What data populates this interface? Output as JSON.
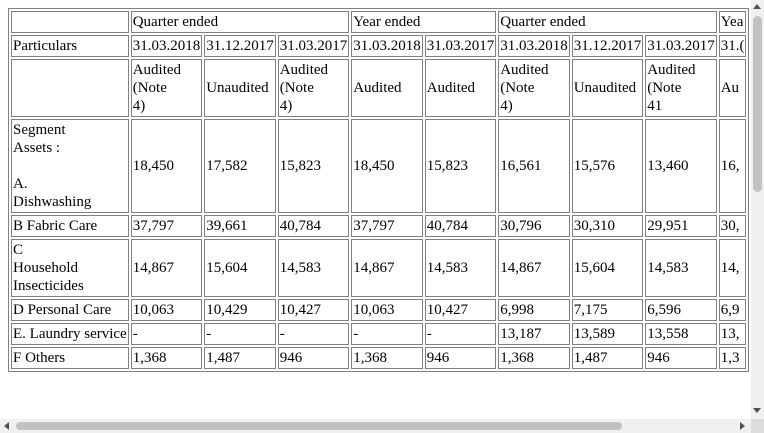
{
  "header": {
    "group_quarter_1": "Quarter ended",
    "group_year_1": "Year ended",
    "group_quarter_2": "Quarter ended",
    "group_year_2_cut": "Yea",
    "particulars": "Particulars",
    "dates": [
      "31.03.2018",
      "31.12.2017",
      "31.03.2017",
      "31.03.2018",
      "31.03.2017",
      "31.03.2018",
      "31.12.2017",
      "31.03.2017"
    ],
    "date_cut": "31.(",
    "status": [
      "Audited\n(Note\n4)",
      "Unaudited",
      "Audited\n(Note\n4)",
      "Audited",
      "Audited",
      "Audited\n(Note\n4)",
      "Unaudited",
      "Audited\n(Note\n41"
    ],
    "status_cut": "Au"
  },
  "section": {
    "label": "Segment Assets :"
  },
  "rows": [
    {
      "label": "A.\nDishwashing",
      "values": [
        "18,450",
        "17,582",
        "15,823",
        "18,450",
        "15,823",
        "16,561",
        "15,576",
        "13,460"
      ],
      "cut": "16,"
    },
    {
      "label": "B Fabric Care",
      "values": [
        "37,797",
        "39,661",
        "40,784",
        "37,797",
        "40,784",
        "30,796",
        "30,310",
        "29,951"
      ],
      "cut": "30,"
    },
    {
      "label": "C\nHousehold\nInsecticides",
      "values": [
        "14,867",
        "15,604",
        "14,583",
        "14,867",
        "14,583",
        "14,867",
        "15,604",
        "14,583"
      ],
      "cut": "14,"
    },
    {
      "label": "D Personal Care",
      "values": [
        "10,063",
        "10,429",
        "10,427",
        "10,063",
        "10,427",
        "6,998",
        "7,175",
        "6,596"
      ],
      "cut": "6,9"
    },
    {
      "label": "E. Laundry service",
      "values": [
        "-",
        "-",
        "-",
        "-",
        "-",
        "13,187",
        "13,589",
        "13,558"
      ],
      "cut": "13,"
    },
    {
      "label": "F Others",
      "values": [
        "1,368",
        "1,487",
        "946",
        "1,368",
        "946",
        "1,368",
        "1,487",
        "946"
      ],
      "cut": "1,3"
    }
  ]
}
